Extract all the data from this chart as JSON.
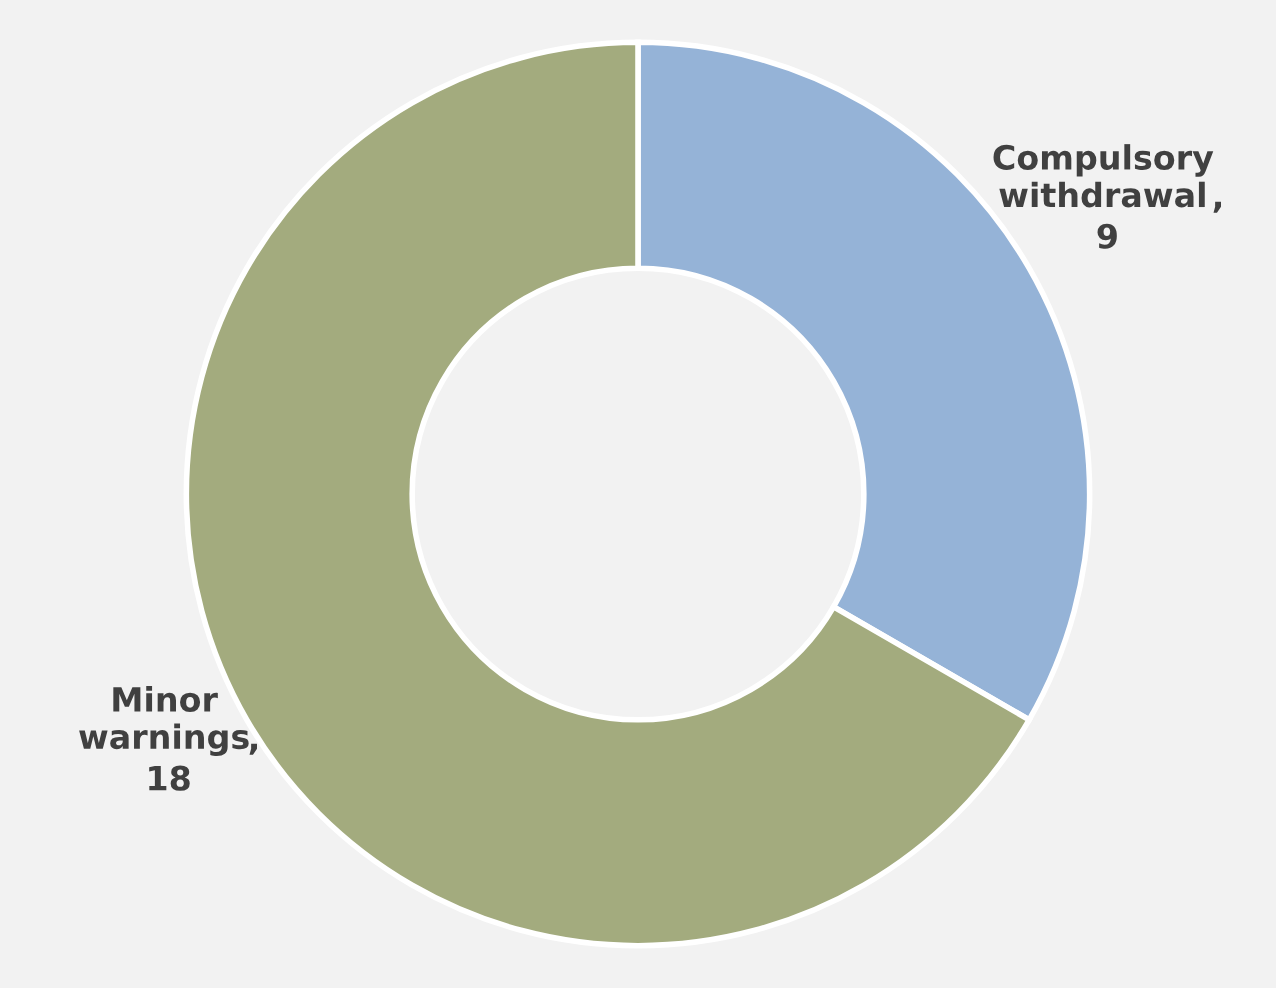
{
  "chart_data": {
    "type": "donut",
    "categories": [
      "Compulsory withdrawal",
      "Minor warnings"
    ],
    "values": [
      9,
      18
    ],
    "colors": [
      "#95b3d7",
      "#a3ab7e"
    ],
    "data_labels": true,
    "legend": false
  }
}
